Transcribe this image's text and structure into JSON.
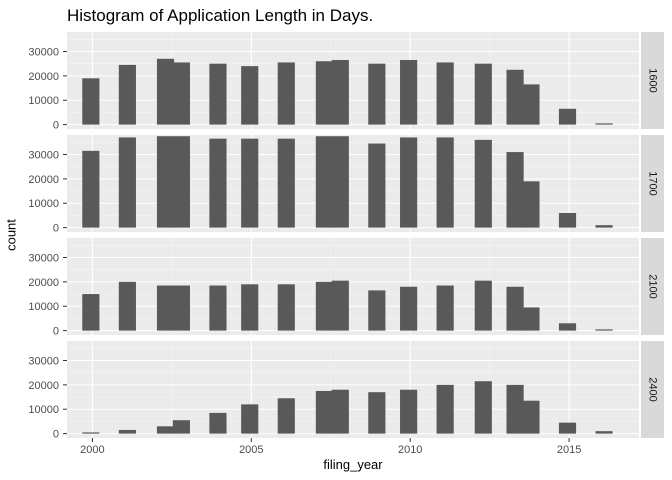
{
  "chart_data": {
    "type": "bar",
    "title": "Histogram of Application Length in Days.",
    "xlabel": "filing_year",
    "ylabel": "count",
    "xlim": [
      1999.2,
      2017.2
    ],
    "ylim": [
      -1800,
      38000
    ],
    "x_ticks": [
      2000,
      2005,
      2010,
      2015
    ],
    "y_ticks": [
      0,
      10000,
      20000,
      30000
    ],
    "grid": true,
    "bin_width": 0.54,
    "facets": [
      {
        "label": "1600",
        "bins": [
          {
            "x": 1999.95,
            "value": 19000
          },
          {
            "x": 2001.1,
            "value": 24500
          },
          {
            "x": 2002.3,
            "value": 27000
          },
          {
            "x": 2002.8,
            "value": 25500
          },
          {
            "x": 2003.95,
            "value": 25000
          },
          {
            "x": 2004.95,
            "value": 24000
          },
          {
            "x": 2006.1,
            "value": 25500
          },
          {
            "x": 2007.3,
            "value": 26000
          },
          {
            "x": 2007.8,
            "value": 26500
          },
          {
            "x": 2008.95,
            "value": 25000
          },
          {
            "x": 2009.95,
            "value": 26500
          },
          {
            "x": 2011.1,
            "value": 25500
          },
          {
            "x": 2012.3,
            "value": 25000
          },
          {
            "x": 2013.3,
            "value": 22500
          },
          {
            "x": 2013.8,
            "value": 16500
          },
          {
            "x": 2014.95,
            "value": 6500
          },
          {
            "x": 2016.1,
            "value": 500
          }
        ]
      },
      {
        "label": "1700",
        "bins": [
          {
            "x": 1999.95,
            "value": 31500
          },
          {
            "x": 2001.1,
            "value": 37000
          },
          {
            "x": 2002.3,
            "value": 37500
          },
          {
            "x": 2002.8,
            "value": 37500
          },
          {
            "x": 2003.95,
            "value": 36500
          },
          {
            "x": 2004.95,
            "value": 36500
          },
          {
            "x": 2006.1,
            "value": 36500
          },
          {
            "x": 2007.3,
            "value": 37500
          },
          {
            "x": 2007.8,
            "value": 37500
          },
          {
            "x": 2008.95,
            "value": 34500
          },
          {
            "x": 2009.95,
            "value": 37000
          },
          {
            "x": 2011.1,
            "value": 37000
          },
          {
            "x": 2012.3,
            "value": 36000
          },
          {
            "x": 2013.3,
            "value": 31000
          },
          {
            "x": 2013.8,
            "value": 19000
          },
          {
            "x": 2014.95,
            "value": 6000
          },
          {
            "x": 2016.1,
            "value": 1000
          }
        ]
      },
      {
        "label": "2100",
        "bins": [
          {
            "x": 1999.95,
            "value": 15000
          },
          {
            "x": 2001.1,
            "value": 20000
          },
          {
            "x": 2002.3,
            "value": 18500
          },
          {
            "x": 2002.8,
            "value": 18500
          },
          {
            "x": 2003.95,
            "value": 18500
          },
          {
            "x": 2004.95,
            "value": 19000
          },
          {
            "x": 2006.1,
            "value": 19000
          },
          {
            "x": 2007.3,
            "value": 20000
          },
          {
            "x": 2007.8,
            "value": 20500
          },
          {
            "x": 2008.95,
            "value": 16500
          },
          {
            "x": 2009.95,
            "value": 18000
          },
          {
            "x": 2011.1,
            "value": 18500
          },
          {
            "x": 2012.3,
            "value": 20500
          },
          {
            "x": 2013.3,
            "value": 18000
          },
          {
            "x": 2013.8,
            "value": 9500
          },
          {
            "x": 2014.95,
            "value": 3000
          },
          {
            "x": 2016.1,
            "value": 500
          }
        ]
      },
      {
        "label": "2400",
        "bins": [
          {
            "x": 1999.95,
            "value": 500
          },
          {
            "x": 2001.1,
            "value": 1500
          },
          {
            "x": 2002.3,
            "value": 3000
          },
          {
            "x": 2002.8,
            "value": 5500
          },
          {
            "x": 2003.95,
            "value": 8500
          },
          {
            "x": 2004.95,
            "value": 12000
          },
          {
            "x": 2006.1,
            "value": 14500
          },
          {
            "x": 2007.3,
            "value": 17500
          },
          {
            "x": 2007.8,
            "value": 18000
          },
          {
            "x": 2008.95,
            "value": 17000
          },
          {
            "x": 2009.95,
            "value": 18000
          },
          {
            "x": 2011.1,
            "value": 20000
          },
          {
            "x": 2012.3,
            "value": 21500
          },
          {
            "x": 2013.3,
            "value": 20000
          },
          {
            "x": 2013.8,
            "value": 13500
          },
          {
            "x": 2014.95,
            "value": 4500
          },
          {
            "x": 2016.1,
            "value": 1000
          }
        ]
      }
    ],
    "colors": {
      "bar": "#595959",
      "panel_bg": "#ebebeb",
      "grid_major": "#ffffff",
      "strip_bg": "#d9d9d9",
      "tick_text": "#4d4d4d"
    }
  }
}
